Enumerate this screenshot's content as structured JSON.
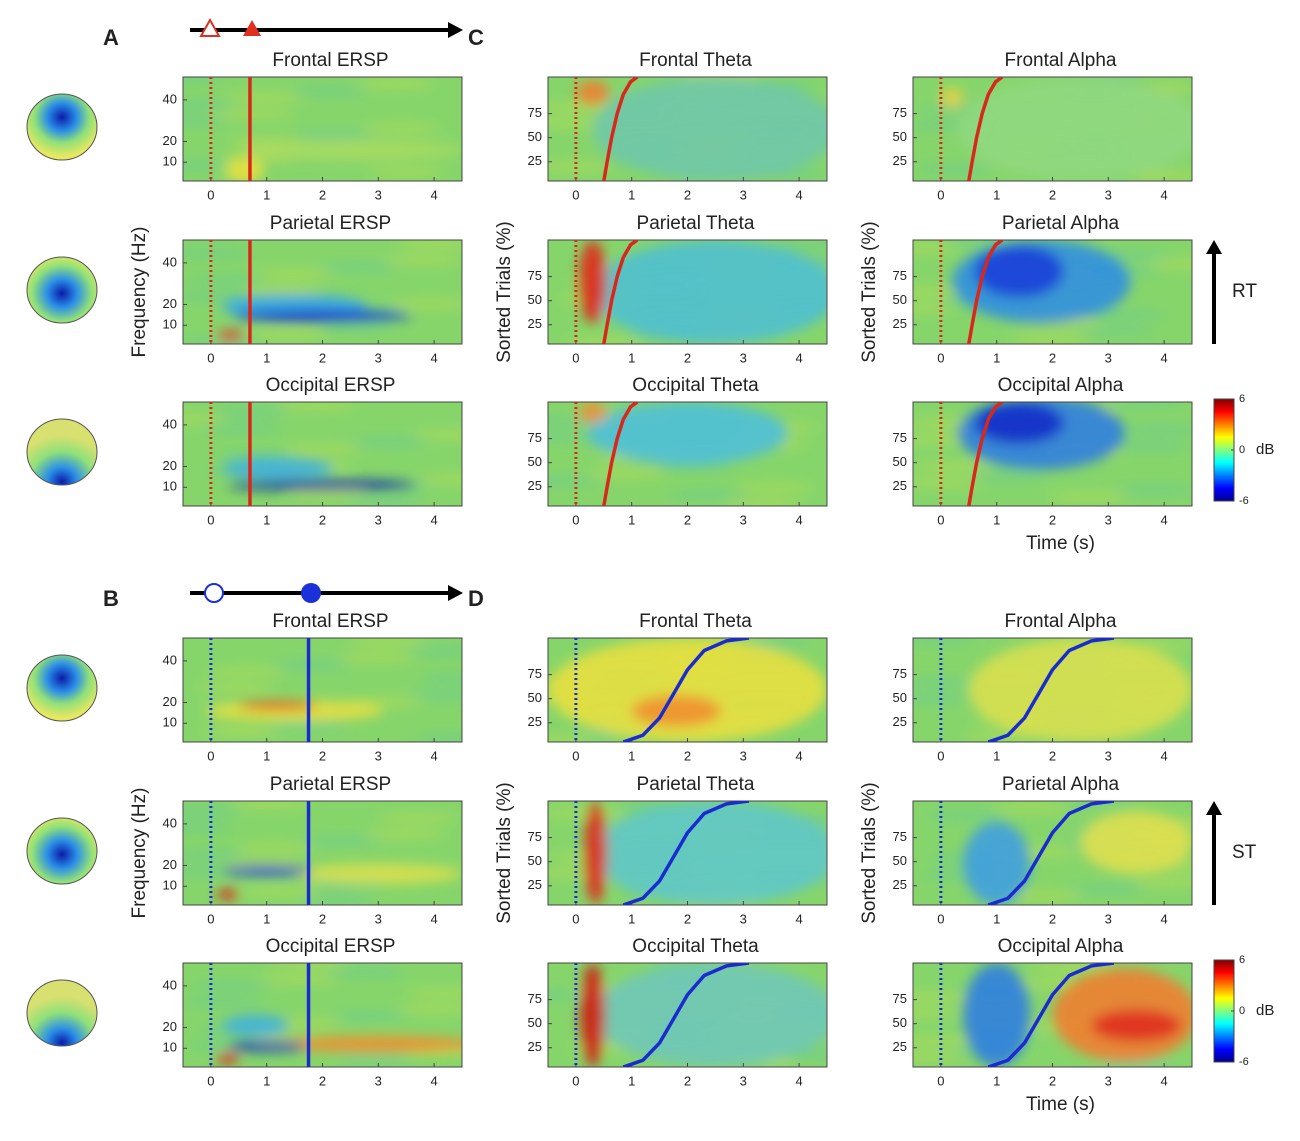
{
  "chart_data": [
    {
      "type": "heatmap",
      "panel": "A",
      "title": "Frontal ERSP",
      "xlim": [
        -0.5,
        4.5
      ],
      "ylim": [
        1,
        51
      ],
      "xticks": [
        0,
        1,
        2,
        3,
        4
      ],
      "yticks": [
        10,
        20,
        40
      ],
      "stimulus_x": 0,
      "response_x": 0.7,
      "color": "#d8281c"
    },
    {
      "type": "heatmap",
      "title": "Parietal ERSP",
      "ylabel": "Frequency (Hz)",
      "xlim": [
        -0.5,
        4.5
      ],
      "ylim": [
        1,
        51
      ],
      "xticks": [
        0,
        1,
        2,
        3,
        4
      ],
      "yticks": [
        10,
        20,
        40
      ],
      "stimulus_x": 0,
      "response_x": 0.7,
      "color": "#d8281c"
    },
    {
      "type": "heatmap",
      "title": "Occipital ERSP",
      "xlim": [
        -0.5,
        4.5
      ],
      "ylim": [
        1,
        51
      ],
      "xticks": [
        0,
        1,
        2,
        3,
        4
      ],
      "yticks": [
        10,
        20,
        40
      ],
      "stimulus_x": 0,
      "response_x": 0.7,
      "color": "#d8281c"
    },
    {
      "type": "heatmap",
      "panel": "C",
      "title": "Frontal Theta",
      "xlim": [
        -0.5,
        4.5
      ],
      "ylim": [
        5,
        113
      ],
      "xticks": [
        0,
        1,
        2,
        3,
        4
      ],
      "yticks": [
        25,
        50,
        75
      ],
      "stimulus_x": 0,
      "curve": {
        "x": [
          0.5,
          0.56,
          0.64,
          0.74,
          0.85,
          0.98,
          1.1
        ],
        "y": [
          5,
          25,
          50,
          75,
          95,
          108,
          113
        ]
      },
      "color": "#d8281c"
    },
    {
      "type": "heatmap",
      "title": "Parietal Theta",
      "ylabel": "Sorted Trials (%)",
      "xlim": [
        -0.5,
        4.5
      ],
      "ylim": [
        5,
        113
      ],
      "xticks": [
        0,
        1,
        2,
        3,
        4
      ],
      "yticks": [
        25,
        50,
        75
      ],
      "stimulus_x": 0,
      "curve": {
        "x": [
          0.5,
          0.56,
          0.64,
          0.74,
          0.85,
          0.98,
          1.1
        ],
        "y": [
          5,
          25,
          50,
          75,
          95,
          108,
          113
        ]
      },
      "color": "#d8281c"
    },
    {
      "type": "heatmap",
      "title": "Occipital Theta",
      "xlim": [
        -0.5,
        4.5
      ],
      "ylim": [
        5,
        113
      ],
      "xticks": [
        0,
        1,
        2,
        3,
        4
      ],
      "yticks": [
        25,
        50,
        75
      ],
      "stimulus_x": 0,
      "curve": {
        "x": [
          0.5,
          0.56,
          0.64,
          0.74,
          0.85,
          0.98,
          1.1
        ],
        "y": [
          5,
          25,
          50,
          75,
          95,
          108,
          113
        ]
      },
      "color": "#d8281c"
    },
    {
      "type": "heatmap",
      "title": "Frontal Alpha",
      "xlim": [
        -0.5,
        4.5
      ],
      "ylim": [
        5,
        113
      ],
      "xticks": [
        0,
        1,
        2,
        3,
        4
      ],
      "yticks": [
        25,
        50,
        75
      ],
      "stimulus_x": 0,
      "curve": {
        "x": [
          0.5,
          0.56,
          0.64,
          0.74,
          0.85,
          0.98,
          1.1
        ],
        "y": [
          5,
          25,
          50,
          75,
          95,
          108,
          113
        ]
      },
      "color": "#d8281c"
    },
    {
      "type": "heatmap",
      "title": "Parietal Alpha",
      "ylabel": "Sorted Trials (%)",
      "annotation": "RT",
      "xlim": [
        -0.5,
        4.5
      ],
      "ylim": [
        5,
        113
      ],
      "xticks": [
        0,
        1,
        2,
        3,
        4
      ],
      "yticks": [
        25,
        50,
        75
      ],
      "stimulus_x": 0,
      "curve": {
        "x": [
          0.5,
          0.56,
          0.64,
          0.74,
          0.85,
          0.98,
          1.1
        ],
        "y": [
          5,
          25,
          50,
          75,
          95,
          108,
          113
        ]
      },
      "color": "#d8281c"
    },
    {
      "type": "heatmap",
      "title": "Occipital Alpha",
      "xlabel": "Time (s)",
      "colorbar": {
        "lim": [
          -6,
          6
        ],
        "ticks": [
          6,
          0,
          -6
        ],
        "label": "dB"
      },
      "xlim": [
        -0.5,
        4.5
      ],
      "ylim": [
        5,
        113
      ],
      "xticks": [
        0,
        1,
        2,
        3,
        4
      ],
      "yticks": [
        25,
        50,
        75
      ],
      "stimulus_x": 0,
      "curve": {
        "x": [
          0.5,
          0.56,
          0.64,
          0.74,
          0.85,
          0.98,
          1.1
        ],
        "y": [
          5,
          25,
          50,
          75,
          95,
          108,
          113
        ]
      },
      "color": "#d8281c"
    },
    {
      "type": "heatmap",
      "panel": "B",
      "title": "Frontal ERSP",
      "xlim": [
        -0.5,
        4.5
      ],
      "ylim": [
        1,
        51
      ],
      "xticks": [
        0,
        1,
        2,
        3,
        4
      ],
      "yticks": [
        10,
        20,
        40
      ],
      "stimulus_x": 0,
      "response_x": 1.75,
      "color": "#1a2ccf"
    },
    {
      "type": "heatmap",
      "title": "Parietal ERSP",
      "ylabel": "Frequency (Hz)",
      "xlim": [
        -0.5,
        4.5
      ],
      "ylim": [
        1,
        51
      ],
      "xticks": [
        0,
        1,
        2,
        3,
        4
      ],
      "yticks": [
        10,
        20,
        40
      ],
      "stimulus_x": 0,
      "response_x": 1.75,
      "color": "#1a2ccf"
    },
    {
      "type": "heatmap",
      "title": "Occipital ERSP",
      "xlim": [
        -0.5,
        4.5
      ],
      "ylim": [
        1,
        51
      ],
      "xticks": [
        0,
        1,
        2,
        3,
        4
      ],
      "yticks": [
        10,
        20,
        40
      ],
      "stimulus_x": 0,
      "response_x": 1.75,
      "color": "#1a2ccf"
    },
    {
      "type": "heatmap",
      "panel": "D",
      "title": "Frontal Theta",
      "xlim": [
        -0.5,
        4.5
      ],
      "ylim": [
        5,
        113
      ],
      "xticks": [
        0,
        1,
        2,
        3,
        4
      ],
      "yticks": [
        25,
        50,
        75
      ],
      "stimulus_x": 0,
      "curve": {
        "x": [
          0.85,
          1.2,
          1.5,
          1.75,
          2.0,
          2.3,
          2.7,
          3.1
        ],
        "y": [
          5,
          12,
          30,
          55,
          80,
          100,
          110,
          113
        ]
      },
      "color": "#1a2ccf"
    },
    {
      "type": "heatmap",
      "title": "Parietal Theta",
      "ylabel": "Sorted Trials (%)",
      "xlim": [
        -0.5,
        4.5
      ],
      "ylim": [
        5,
        113
      ],
      "xticks": [
        0,
        1,
        2,
        3,
        4
      ],
      "yticks": [
        25,
        50,
        75
      ],
      "stimulus_x": 0,
      "curve": {
        "x": [
          0.85,
          1.2,
          1.5,
          1.75,
          2.0,
          2.3,
          2.7,
          3.1
        ],
        "y": [
          5,
          12,
          30,
          55,
          80,
          100,
          110,
          113
        ]
      },
      "color": "#1a2ccf"
    },
    {
      "type": "heatmap",
      "title": "Occipital Theta",
      "xlim": [
        -0.5,
        4.5
      ],
      "ylim": [
        5,
        113
      ],
      "xticks": [
        0,
        1,
        2,
        3,
        4
      ],
      "yticks": [
        25,
        50,
        75
      ],
      "stimulus_x": 0,
      "curve": {
        "x": [
          0.85,
          1.2,
          1.5,
          1.75,
          2.0,
          2.3,
          2.7,
          3.1
        ],
        "y": [
          5,
          12,
          30,
          55,
          80,
          100,
          110,
          113
        ]
      },
      "color": "#1a2ccf"
    },
    {
      "type": "heatmap",
      "title": "Frontal Alpha",
      "xlim": [
        -0.5,
        4.5
      ],
      "ylim": [
        5,
        113
      ],
      "xticks": [
        0,
        1,
        2,
        3,
        4
      ],
      "yticks": [
        25,
        50,
        75
      ],
      "stimulus_x": 0,
      "curve": {
        "x": [
          0.85,
          1.2,
          1.5,
          1.75,
          2.0,
          2.3,
          2.7,
          3.1
        ],
        "y": [
          5,
          12,
          30,
          55,
          80,
          100,
          110,
          113
        ]
      },
      "color": "#1a2ccf"
    },
    {
      "type": "heatmap",
      "title": "Parietal Alpha",
      "ylabel": "Sorted Trials (%)",
      "annotation": "ST",
      "xlim": [
        -0.5,
        4.5
      ],
      "ylim": [
        5,
        113
      ],
      "xticks": [
        0,
        1,
        2,
        3,
        4
      ],
      "yticks": [
        25,
        50,
        75
      ],
      "stimulus_x": 0,
      "curve": {
        "x": [
          0.85,
          1.2,
          1.5,
          1.75,
          2.0,
          2.3,
          2.7,
          3.1
        ],
        "y": [
          5,
          12,
          30,
          55,
          80,
          100,
          110,
          113
        ]
      },
      "color": "#1a2ccf"
    },
    {
      "type": "heatmap",
      "title": "Occipital Alpha",
      "xlabel": "Time (s)",
      "colorbar": {
        "lim": [
          -6,
          6
        ],
        "ticks": [
          6,
          0,
          -6
        ],
        "label": "dB"
      },
      "xlim": [
        -0.5,
        4.5
      ],
      "ylim": [
        5,
        113
      ],
      "xticks": [
        0,
        1,
        2,
        3,
        4
      ],
      "yticks": [
        25,
        50,
        75
      ],
      "stimulus_x": 0,
      "curve": {
        "x": [
          0.85,
          1.2,
          1.5,
          1.75,
          2.0,
          2.3,
          2.7,
          3.1
        ],
        "y": [
          5,
          12,
          30,
          55,
          80,
          100,
          110,
          113
        ]
      },
      "color": "#1a2ccf"
    }
  ]
}
